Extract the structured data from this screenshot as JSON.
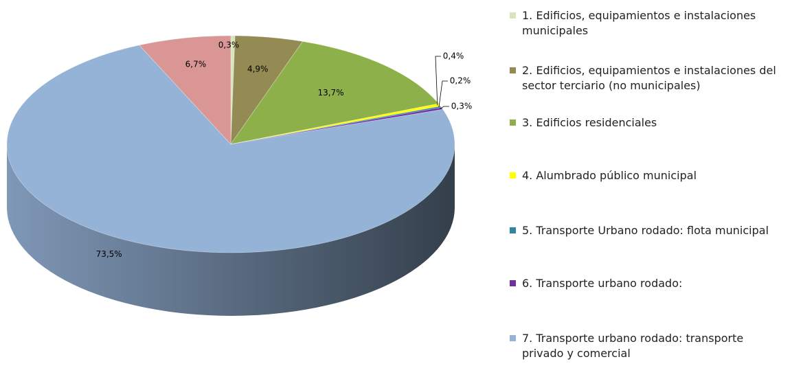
{
  "chart_data": {
    "type": "pie",
    "categories": [
      "1. Edificios, equipamientos e instalaciones municipales",
      "2. Edificios, equipamientos e instalaciones del sector terciario (no municipales)",
      "3. Edificios residenciales",
      "4. Alumbrado público municipal",
      "5. Transporte Urbano rodado: flota municipal",
      "6. Transporte urbano rodado:",
      "7. Transporte urbano rodado: transporte privado y comercial",
      null
    ],
    "values": [
      0.3,
      4.9,
      13.7,
      0.4,
      0.2,
      0.3,
      73.5,
      6.7
    ],
    "value_labels": [
      "0,3%",
      "4,9%",
      "13,7%",
      "0,4%",
      "0,2%",
      "0,3%",
      "73,5%",
      "6,7%"
    ],
    "colors": [
      "#d7e4bd",
      "#948a54",
      "#8eb04a",
      "#ffff00",
      "#31859c",
      "#7030a0",
      "#95b3d7",
      "#d99694"
    ],
    "legend": "right"
  }
}
